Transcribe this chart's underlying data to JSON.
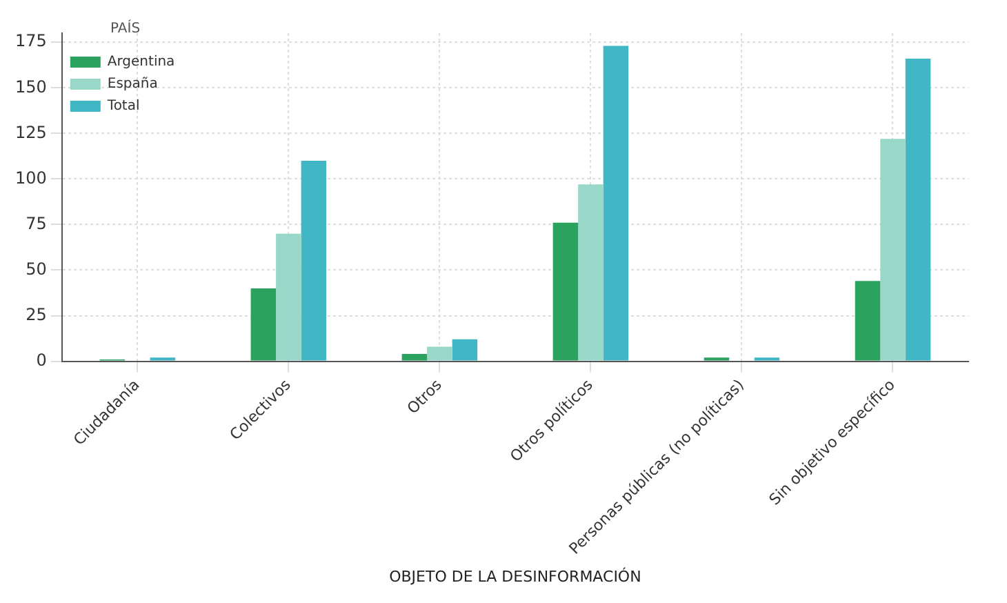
{
  "chart_data": {
    "type": "bar",
    "xlabel": "OBJETO DE LA DESINFORMACIÓN",
    "legend_title": "PAÍS",
    "categories": [
      "Ciudadanía",
      "Colectivos",
      "Otros",
      "Otros políticos",
      "Personas públicas (no políticas)",
      "Sin objetivo específico"
    ],
    "series": [
      {
        "name": "Argentina",
        "color": "#2ca25f",
        "values": [
          1,
          40,
          4,
          76,
          2,
          44
        ]
      },
      {
        "name": "España",
        "color": "#99d8c9",
        "values": [
          0,
          70,
          8,
          97,
          0,
          122
        ]
      },
      {
        "name": "Total",
        "color": "#41b6c4",
        "values": [
          2,
          110,
          12,
          173,
          2,
          166
        ]
      }
    ],
    "ylim": [
      0,
      180
    ],
    "yticks": [
      0,
      25,
      50,
      75,
      100,
      125,
      150,
      175
    ],
    "grid": true,
    "legend": "top left"
  }
}
